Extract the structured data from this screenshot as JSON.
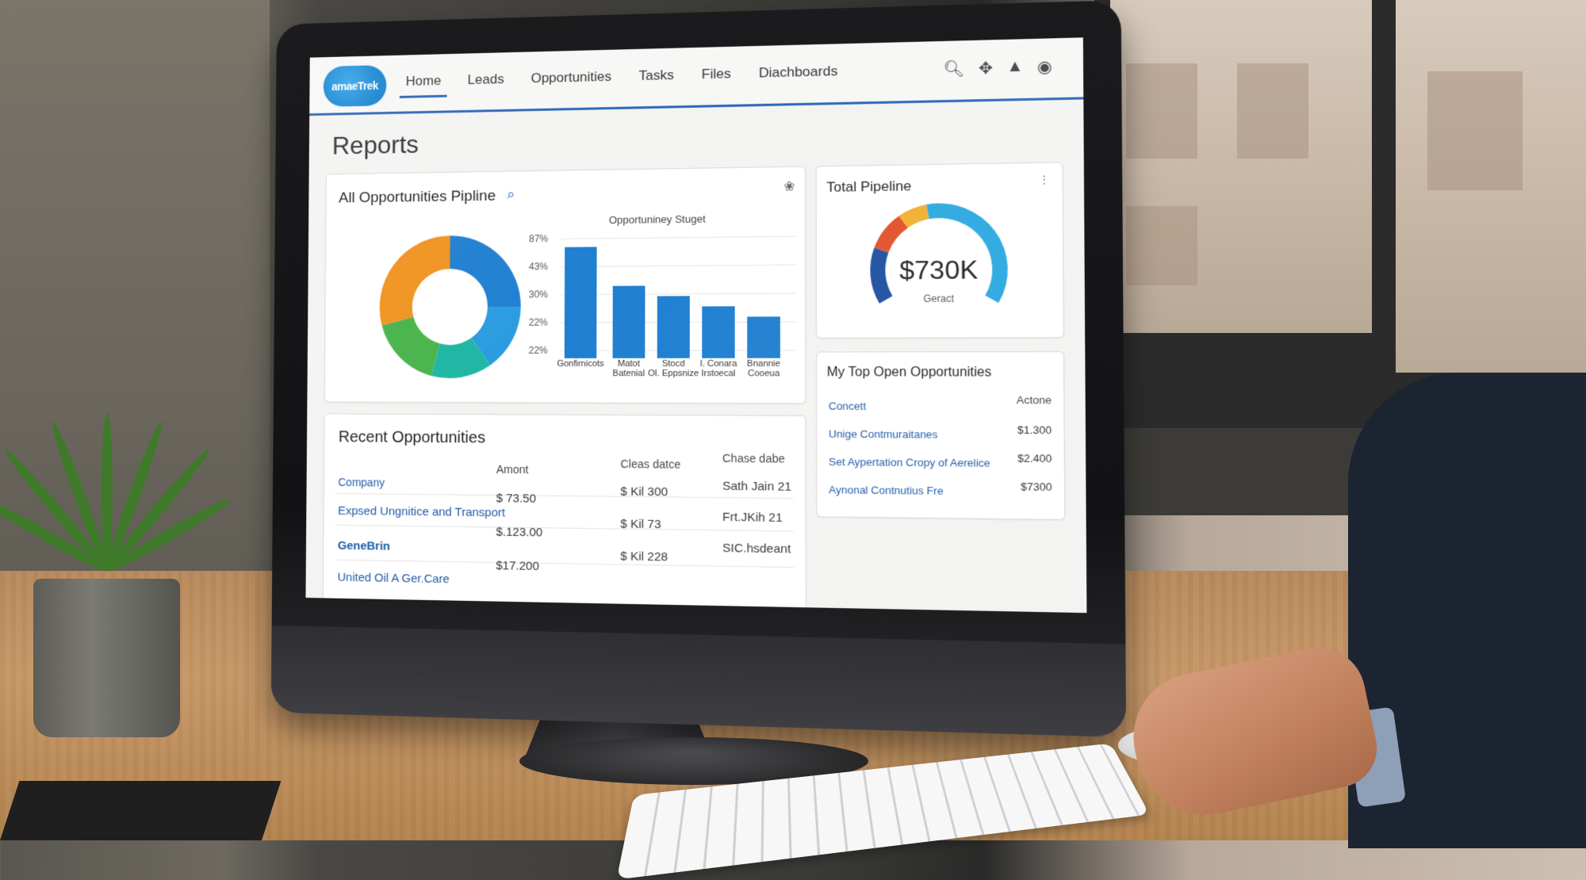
{
  "app": {
    "logo_text": "amaeTrek",
    "nav": [
      "Home",
      "Leads",
      "Opportunities",
      "Tasks",
      "Files",
      "Diachboards"
    ],
    "active_nav": "Home",
    "icons": [
      "search-icon",
      "pin-icon",
      "bell-icon",
      "user-icon"
    ]
  },
  "page": {
    "title": "Reports"
  },
  "pipeline": {
    "title": "All Opportunities Pipline",
    "donut_colors": [
      "#1f7fd1",
      "#2a9be0",
      "#1eb6a3",
      "#47b34a",
      "#f0931f"
    ],
    "bar_chart": {
      "title": "Opportuniney Stuget",
      "yticks": [
        "87%",
        "43%",
        "30%",
        "22%",
        "22%"
      ],
      "labels": [
        [
          "Gonfirnicots",
          ""
        ],
        [
          "Matot",
          "Batenial"
        ],
        [
          "Stocd",
          "Ol. Eppsnize"
        ],
        [
          "I. Conara",
          "Irstoecal"
        ],
        [
          "Bnannie",
          "Cooeua"
        ]
      ]
    }
  },
  "chart_data": {
    "type": "bar",
    "title": "Opportuniney Stuget",
    "categories": [
      "Gonfirnicots",
      "Matot Batenial",
      "Stocd Ol. Eppsnize",
      "I. Conara Irstoecal",
      "Bnannie Cooeua"
    ],
    "values": [
      87,
      56,
      48,
      40,
      32
    ],
    "ylim": [
      0,
      100
    ]
  },
  "total_pipeline": {
    "title": "Total Pipeline",
    "value": "$730K",
    "subtitle": "Geract",
    "gauge_colors": [
      "#1d4fa0",
      "#e2502a",
      "#f0b030",
      "#2aa8e0"
    ]
  },
  "top_open": {
    "title": "My Top Open Opportunities",
    "head_name": "Concett",
    "head_amount": "Actone",
    "rows": [
      {
        "name": "Unige Contmuraitanes",
        "amount": "$1.300"
      },
      {
        "name": "Set Aypertation Cropy of Aerelice",
        "amount": "$2.400"
      },
      {
        "name": "Aynonal Contnutius Fre",
        "amount": "$7300"
      }
    ]
  },
  "recent": {
    "title": "Recent Opportunities",
    "columns": [
      "Company",
      "Amont",
      "Cleas datce",
      "Chase dabe"
    ],
    "rows": [
      {
        "company": "Expsed Ungnitice and Transport",
        "amount": "$ 73.50",
        "close": "$ Kil 300",
        "date": "Sath Jain 21"
      },
      {
        "company": "GeneBrin",
        "amount": "$.123.00",
        "close": "$ Kil 73",
        "date": "Frt.JKih 21"
      },
      {
        "company": "United Oil A Ger.Care",
        "amount": "$17.200",
        "close": "$ Kil 228",
        "date": "SIC.hsdeant"
      }
    ]
  }
}
